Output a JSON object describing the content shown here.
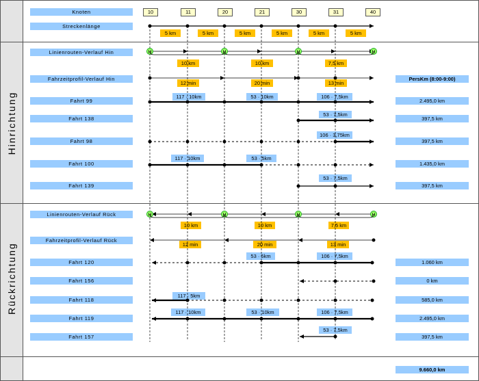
{
  "header": {
    "knoten_label": "Knoten",
    "strecken_label": "Streckenlänge",
    "nodes": [
      "10",
      "11",
      "20",
      "21",
      "30",
      "31",
      "40"
    ],
    "segment_lengths": [
      "5 km",
      "5 km",
      "5 km",
      "5 km",
      "5 km",
      "5 km"
    ]
  },
  "hin": {
    "section_label": "Hinrichtung",
    "routes_label": "Linienrouten-Verlauf Hin",
    "route_marker": "H",
    "route_lengths": [
      "10 km",
      "10 km",
      "7,5 km"
    ],
    "profile_label": "Fahrzeitprofil-Verlauf Hin",
    "profile_times": [
      "12 min",
      "20 min",
      "13 min"
    ],
    "perskm_header": "PersKm (8:00-9:00)",
    "trips": [
      {
        "label": "Fahrt 99",
        "notes": [
          "117 · 10km",
          "53 · 10km",
          "106 · 7,5km"
        ],
        "result": "2.495,0 km"
      },
      {
        "label": "Fahrt 138",
        "notes": [
          "53 · 7,5km"
        ],
        "result": "397,5 km"
      },
      {
        "label": "Fahrt 98",
        "notes": [
          "106 · 3,75km"
        ],
        "result": "397,5 km"
      },
      {
        "label": "Fahrt 100",
        "notes": [
          "117 · 10km",
          "53 · 5km"
        ],
        "result": "1.435,0 km"
      },
      {
        "label": "Fahrt 139",
        "notes": [
          "53 · 7,5km"
        ],
        "result": "397,5 km"
      }
    ]
  },
  "rueck": {
    "section_label": "Rückrichtung",
    "routes_label": "Linienrouten-Verlauf Rück",
    "route_marker": "H",
    "route_lengths": [
      "10 km",
      "10 km",
      "7,5 km"
    ],
    "profile_label": "Fahrzeitprofil-Verlauf Rück",
    "profile_times": [
      "12 min",
      "20 min",
      "13 min"
    ],
    "trips": [
      {
        "label": "Fahrt 120",
        "notes": [
          "53 · 5km",
          "106 · 7,5km"
        ],
        "result": "1.060 km"
      },
      {
        "label": "Fahrt 156",
        "notes": [],
        "result": "0 km"
      },
      {
        "label": "Fahrt 118",
        "notes": [
          "117 · 5km"
        ],
        "result": "585,0 km"
      },
      {
        "label": "Fahrt 119",
        "notes": [
          "117 · 10km",
          "53 · 10km",
          "106 · 7,5km"
        ],
        "result": "2.495,0 km"
      },
      {
        "label": "Fahrt 157",
        "notes": [
          "53 · 7,5km"
        ],
        "result": "397,5 km"
      }
    ]
  },
  "total": "9.660,0 km",
  "colors": {
    "route_marker": "#99ff66",
    "orange": "#ffc000",
    "blue": "#99ccff",
    "side": "#e4e4e4"
  }
}
